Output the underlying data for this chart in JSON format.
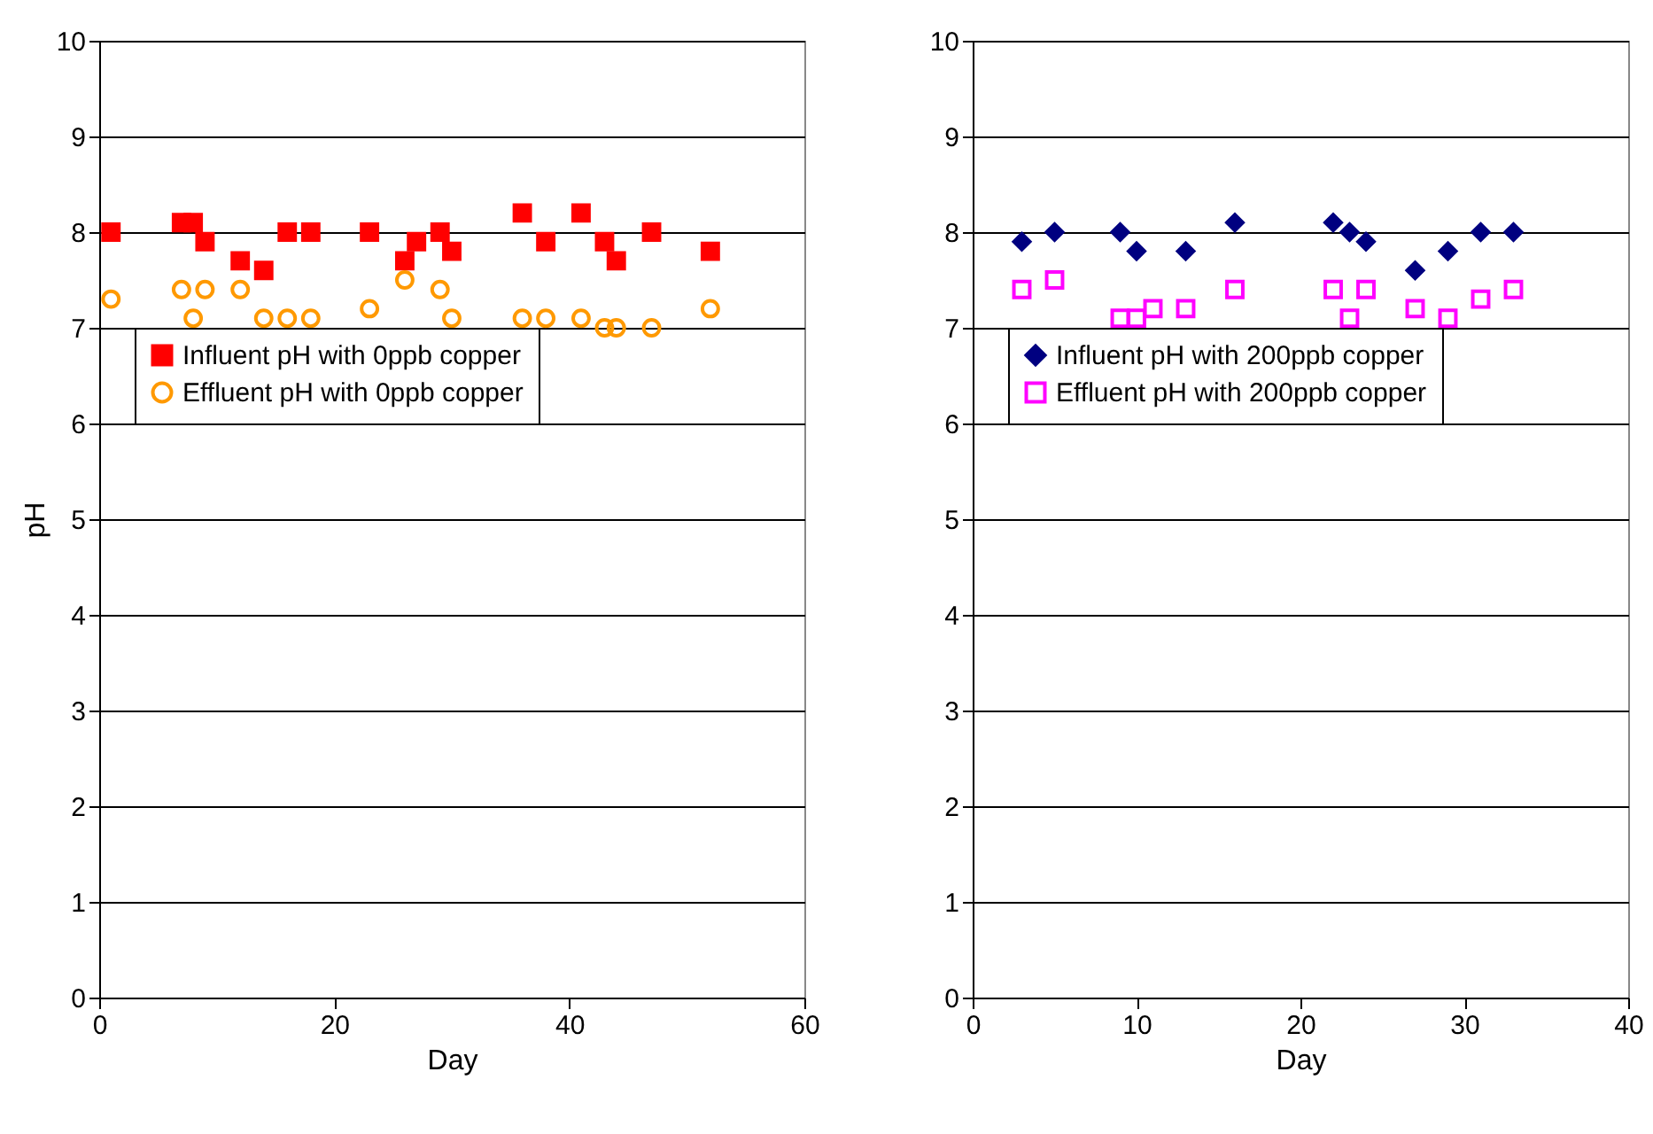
{
  "chart_data": [
    {
      "type": "scatter",
      "xlabel": "Day",
      "ylabel": "pH",
      "xlim": [
        0,
        60
      ],
      "xticks": [
        0,
        20,
        40,
        60
      ],
      "ylim": [
        0,
        10
      ],
      "yticks": [
        0,
        1,
        2,
        3,
        4,
        5,
        6,
        7,
        8,
        9,
        10
      ],
      "grid": "y",
      "legend": "left",
      "series": [
        {
          "name": "Influent pH with 0ppb copper",
          "color": "#ff0000",
          "marker": "square",
          "x": [
            1,
            7,
            8,
            9,
            12,
            14,
            16,
            18,
            23,
            26,
            27,
            29,
            30,
            36,
            38,
            41,
            43,
            44,
            47,
            52
          ],
          "values": [
            8,
            8.1,
            8.1,
            7.9,
            7.7,
            7.6,
            8,
            8,
            8,
            7.7,
            7.9,
            8,
            7.8,
            8.2,
            7.9,
            8.2,
            7.9,
            7.7,
            8,
            7.8
          ]
        },
        {
          "name": "Effluent pH with 0ppb copper",
          "color": "#ff9900",
          "marker": "circle",
          "x": [
            1,
            7,
            8,
            9,
            12,
            14,
            16,
            18,
            23,
            26,
            29,
            30,
            36,
            38,
            41,
            43,
            44,
            47,
            52
          ],
          "values": [
            7.3,
            7.4,
            7.1,
            7.4,
            7.4,
            7.1,
            7.1,
            7.1,
            7.2,
            7.5,
            7.4,
            7.1,
            7.1,
            7.1,
            7.1,
            7.0,
            7.0,
            7.0,
            7.2
          ]
        }
      ]
    },
    {
      "type": "scatter",
      "xlabel": "Day",
      "xlim": [
        0,
        40
      ],
      "xticks": [
        0,
        10,
        20,
        30,
        40
      ],
      "ylim": [
        0,
        10
      ],
      "yticks": [
        0,
        1,
        2,
        3,
        4,
        5,
        6,
        7,
        8,
        9,
        10
      ],
      "grid": "y",
      "legend": "left",
      "series": [
        {
          "name": "Influent pH with 200ppb copper",
          "color": "#000080",
          "marker": "diamond",
          "x": [
            3,
            5,
            9,
            10,
            13,
            16,
            22,
            23,
            24,
            27,
            29,
            31,
            33
          ],
          "values": [
            7.9,
            8,
            8,
            7.8,
            7.8,
            8.1,
            8.1,
            8,
            7.9,
            7.6,
            7.8,
            8,
            8
          ]
        },
        {
          "name": "Effluent pH with 200ppb copper",
          "color": "#ff00ff",
          "marker": "square",
          "x": [
            3,
            5,
            9,
            10,
            11,
            13,
            16,
            22,
            23,
            24,
            27,
            29,
            31,
            33
          ],
          "values": [
            7.4,
            7.5,
            7.1,
            7.1,
            7.2,
            7.2,
            7.4,
            7.4,
            7.1,
            7.4,
            7.2,
            7.1,
            7.3,
            7.4
          ]
        }
      ]
    }
  ]
}
